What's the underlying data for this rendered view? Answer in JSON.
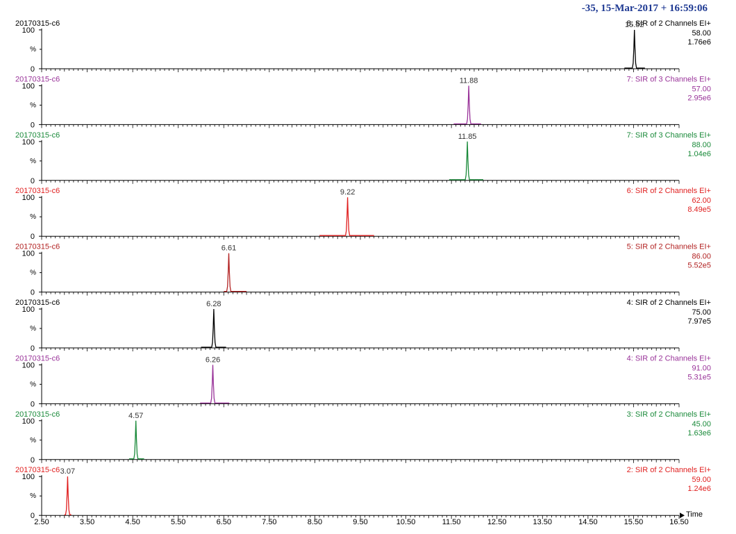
{
  "header": {
    "text": "-35,  15-Mar-2017 + 16:59:06",
    "color": "#1f3a93"
  },
  "chart_data": {
    "type": "line",
    "x_axis": {
      "range": [
        2.5,
        16.5
      ],
      "ticks": [
        2.5,
        3.5,
        4.5,
        5.5,
        6.5,
        7.5,
        8.5,
        9.5,
        10.5,
        11.5,
        12.5,
        13.5,
        14.5,
        15.5,
        16.5
      ],
      "tick_labels": [
        "2.50",
        "3.50",
        "4.50",
        "5.50",
        "6.50",
        "7.50",
        "8.50",
        "9.50",
        "10.50",
        "11.50",
        "12.50",
        "13.50",
        "14.50",
        "15.50",
        "16.50"
      ],
      "label": "Time"
    },
    "y_axis": {
      "range": [
        0,
        100
      ],
      "tick_labels": [
        "100",
        "%",
        "0"
      ]
    },
    "panels": [
      {
        "sample": "20170315-c6",
        "channel": "8: SIR of 2 Channels EI+",
        "mass": "58.00",
        "intensity": "1.76e6",
        "color": "#000000",
        "peak_rt": 15.52,
        "peak_label": "15.52",
        "base_from": 15.3,
        "base_to": 15.75
      },
      {
        "sample": "20170315-c6",
        "channel": "7: SIR of 3 Channels EI+",
        "mass": "57.00",
        "intensity": "2.95e6",
        "color": "#993399",
        "peak_rt": 11.88,
        "peak_label": "11.88",
        "base_from": 11.55,
        "base_to": 12.15
      },
      {
        "sample": "20170315-c6",
        "channel": "7: SIR of 3 Channels EI+",
        "mass": "88.00",
        "intensity": "1.04e6",
        "color": "#1a8a3a",
        "peak_rt": 11.85,
        "peak_label": "11.85",
        "base_from": 11.45,
        "base_to": 12.2
      },
      {
        "sample": "20170315-c6",
        "channel": "6: SIR of 2 Channels EI+",
        "mass": "62.00",
        "intensity": "8.49e5",
        "color": "#e02020",
        "peak_rt": 9.22,
        "peak_label": "9.22",
        "base_from": 8.6,
        "base_to": 9.8
      },
      {
        "sample": "20170315-c6",
        "channel": "5: SIR of 2 Channels EI+",
        "mass": "86.00",
        "intensity": "5.52e5",
        "color": "#b22222",
        "peak_rt": 6.61,
        "peak_label": "6.61",
        "base_from": 6.5,
        "base_to": 7.0
      },
      {
        "sample": "20170315-c6",
        "channel": "4: SIR of 2 Channels EI+",
        "mass": "75.00",
        "intensity": "7.97e5",
        "color": "#000000",
        "peak_rt": 6.28,
        "peak_label": "6.28",
        "base_from": 6.0,
        "base_to": 6.55
      },
      {
        "sample": "20170315-c6",
        "channel": "4: SIR of 2 Channels EI+",
        "mass": "91.00",
        "intensity": "5.31e5",
        "color": "#993399",
        "peak_rt": 6.26,
        "peak_label": "6.26",
        "base_from": 5.98,
        "base_to": 6.62
      },
      {
        "sample": "20170315-c6",
        "channel": "3: SIR of 2 Channels EI+",
        "mass": "45.00",
        "intensity": "1.63e6",
        "color": "#1a8a3a",
        "peak_rt": 4.57,
        "peak_label": "4.57",
        "base_from": 4.42,
        "base_to": 4.75
      },
      {
        "sample": "20170315-c6",
        "channel": "2: SIR of 2 Channels EI+",
        "mass": "59.00",
        "intensity": "1.24e6",
        "color": "#e02020",
        "peak_rt": 3.07,
        "peak_label": "3.07",
        "base_from": 3.0,
        "base_to": 3.15
      }
    ]
  }
}
